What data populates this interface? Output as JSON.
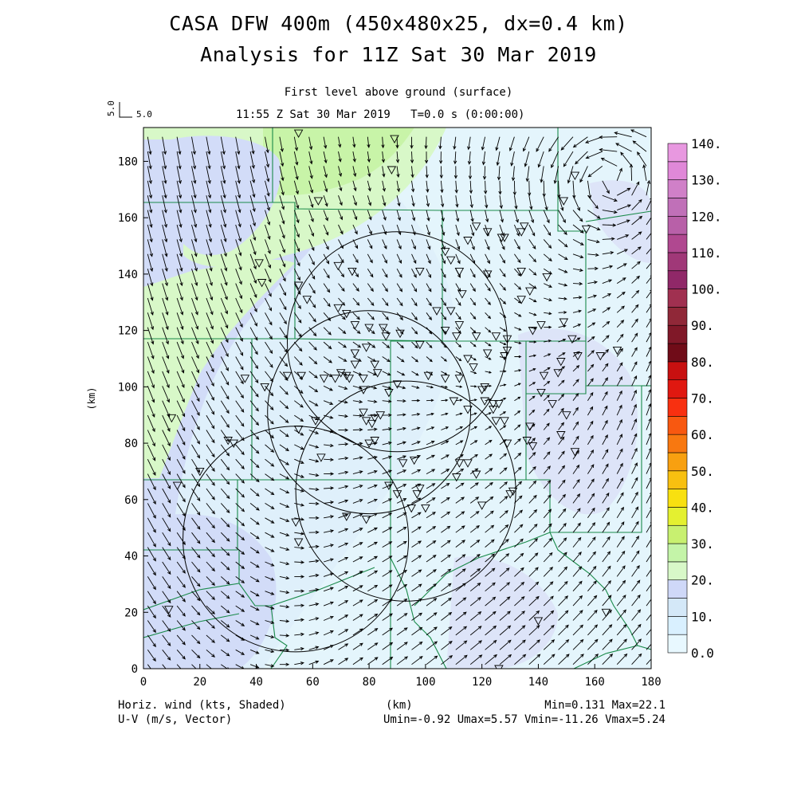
{
  "header": {
    "title_line1": "CASA DFW 400m (450x480x25, dx=0.4 km)",
    "title_line2": "Analysis for 11Z Sat 30 Mar 2019",
    "subtitle": "First level above ground (surface)",
    "time_line": "11:55 Z Sat 30 Mar 2019   T=0.0 s (0:00:00)",
    "ref_vector_value": "5.0",
    "ref_vector_label": "5.0"
  },
  "footer": {
    "left_line1": "Horiz. wind (kts, Shaded)",
    "left_line2": "U-V (m/s, Vector)",
    "center": "(km)",
    "right_line1": "Min=0.131 Max=22.1",
    "right_line2": "Umin=-0.92 Umax=5.57 Vmin=-11.26 Vmax=5.24"
  },
  "chart_data": {
    "type": "heatmap",
    "title": "CASA DFW 400m (450x480x25, dx=0.4 km)",
    "subtitle": "Analysis for 11Z Sat 30 Mar 2019",
    "xlabel": "(km)",
    "ylabel": "(km)",
    "xlim": [
      0,
      180
    ],
    "ylim": [
      0,
      192
    ],
    "x_ticks": [
      0,
      20,
      40,
      60,
      80,
      100,
      120,
      140,
      160,
      180
    ],
    "y_ticks": [
      0,
      20,
      40,
      60,
      80,
      100,
      120,
      140,
      160,
      180
    ],
    "field_shaded": "Horiz. wind (kts)",
    "field_vector": "U-V (m/s)",
    "min": 0.131,
    "max": 22.1,
    "umin": -0.92,
    "umax": 5.57,
    "vmin": -11.26,
    "vmax": 5.24,
    "colorbar": {
      "levels": [
        0,
        5,
        10,
        15,
        20,
        25,
        30,
        35,
        40,
        45,
        50,
        55,
        60,
        65,
        70,
        75,
        80,
        85,
        90,
        95,
        100,
        105,
        110,
        115,
        120,
        125,
        130,
        135,
        140
      ],
      "labels": [
        "0.0",
        "10.",
        "20.",
        "30.",
        "40.",
        "50.",
        "60.",
        "70.",
        "80.",
        "90.",
        "100.",
        "110.",
        "120.",
        "130.",
        "140."
      ],
      "colors": [
        "#e8f8ff",
        "#d9f0ff",
        "#d4e8f8",
        "#cfd8f8",
        "#d8f8c8",
        "#c4f4a8",
        "#c8f070",
        "#e4f030",
        "#f8e010",
        "#f8c010",
        "#f8a010",
        "#f87810",
        "#f85810",
        "#f83010",
        "#e01810",
        "#c81010",
        "#700c18",
        "#801828",
        "#902838",
        "#a03050",
        "#902868",
        "#a03878",
        "#b04890",
        "#b860a8",
        "#c070b8",
        "#d080c8",
        "#e088d8",
        "#e898e0",
        "#f8b0f0"
      ]
    },
    "radar_rings": [
      {
        "center": [
          90,
          116
        ],
        "radius_km": 39
      },
      {
        "center": [
          80,
          91
        ],
        "radius_km": 36
      },
      {
        "center": [
          93,
          63
        ],
        "radius_km": 39
      },
      {
        "center": [
          54,
          46
        ],
        "radius_km": 40
      }
    ]
  }
}
